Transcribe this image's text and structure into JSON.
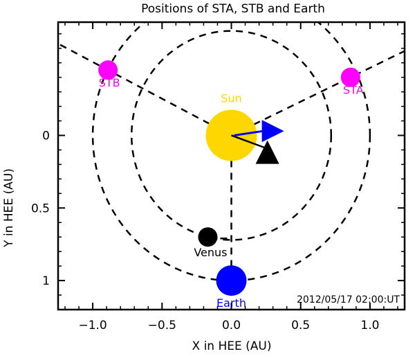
{
  "title": "Positions of STA, STB and Earth",
  "x_axis": {
    "label": "X in HEE (AU)",
    "range": [
      -1.25,
      1.25
    ],
    "ticks": [
      {
        "value": -1.0,
        "label": "−1.0"
      },
      {
        "value": -0.5,
        "label": "−0.5"
      },
      {
        "value": 0.0,
        "label": "0.0"
      },
      {
        "value": 0.5,
        "label": "0.5"
      },
      {
        "value": 1.0,
        "label": "1.0"
      }
    ]
  },
  "y_axis": {
    "label": "Y in HEE (AU)",
    "range": [
      -0.78,
      1.2
    ],
    "ticks": [
      {
        "value": 0,
        "label": "0"
      },
      {
        "value": 0.5,
        "label": "0.5"
      },
      {
        "value": 1.0,
        "label": "1"
      }
    ]
  },
  "timestamp": "2012/05/17 02:00:UT",
  "orbits": [
    {
      "name": "venus-orbit",
      "radius": 0.72
    },
    {
      "name": "earth-orbit",
      "radius": 1.0
    }
  ],
  "bodies": [
    {
      "id": "sun",
      "label": "Sun",
      "x": 0.0,
      "y": 0.0,
      "color": "#FFD700",
      "label_color": "#FFD700"
    },
    {
      "id": "stb",
      "label": "STB",
      "x": -0.89,
      "y": -0.45,
      "color": "#FF00FF",
      "label_color": "#FF00FF"
    },
    {
      "id": "sta",
      "label": "STA",
      "x": 0.86,
      "y": -0.4,
      "color": "#FF00FF",
      "label_color": "#FF00FF"
    },
    {
      "id": "venus",
      "label": "Venus",
      "x": -0.17,
      "y": 0.7,
      "color": "#000000",
      "label_color": "#000000"
    },
    {
      "id": "earth",
      "label": "Earth",
      "x": 0.0,
      "y": 1.0,
      "color": "#0000FF",
      "label_color": "#0000FF"
    }
  ],
  "markers": [
    {
      "id": "blue-triangle",
      "x": 0.28,
      "y": -0.03,
      "color": "#0000FF",
      "shape": "triangle-right"
    },
    {
      "id": "black-triangle",
      "x": 0.26,
      "y": 0.12,
      "color": "#000000",
      "shape": "triangle-up"
    }
  ]
}
